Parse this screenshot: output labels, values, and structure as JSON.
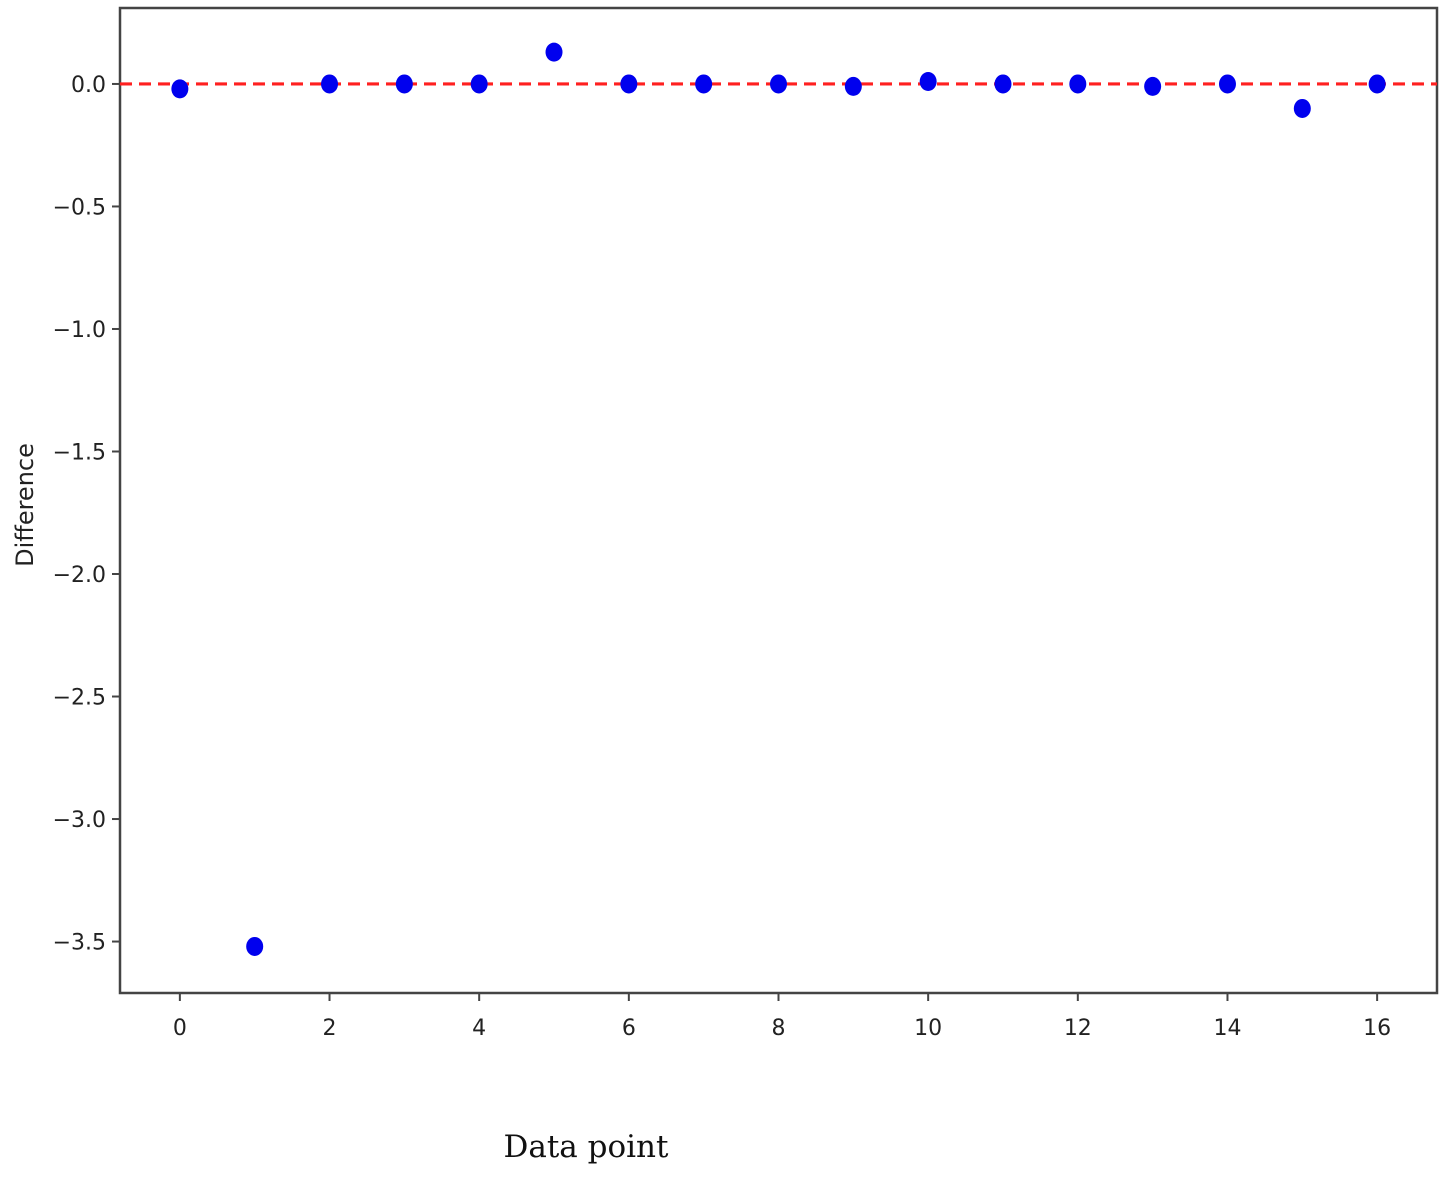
{
  "chart_data": {
    "type": "scatter",
    "title": "",
    "xlabel": "Data point",
    "ylabel": "Difference",
    "xlim": [
      -0.8,
      16.8
    ],
    "ylim": [
      -3.71,
      0.31
    ],
    "x_ticks": [
      0,
      2,
      4,
      6,
      8,
      10,
      12,
      14,
      16
    ],
    "x_tick_labels": [
      "0",
      "2",
      "4",
      "6",
      "8",
      "10",
      "12",
      "14",
      "16"
    ],
    "y_ticks": [
      0.0,
      -0.5,
      -1.0,
      -1.5,
      -2.0,
      -2.5,
      -3.0,
      -3.5
    ],
    "y_tick_labels": [
      "0.0",
      "−0.5",
      "−1.0",
      "−1.5",
      "−2.0",
      "−2.5",
      "−3.0",
      "−3.5"
    ],
    "grid": false,
    "series": [
      {
        "x": [
          0,
          1,
          2,
          3,
          4,
          5,
          6,
          7,
          8,
          9,
          10,
          11,
          12,
          13,
          14,
          15,
          16
        ],
        "y": [
          -0.02,
          -3.52,
          0.0,
          0.0,
          0.0,
          0.13,
          0.0,
          0.0,
          0.0,
          -0.01,
          0.01,
          0.0,
          0.0,
          -0.01,
          0.0,
          -0.1,
          0.0
        ],
        "color": "#0000ee",
        "marker": "circle"
      }
    ],
    "reference_line": {
      "y": 0.0,
      "color": "#ff2020",
      "style": "dashed"
    }
  }
}
